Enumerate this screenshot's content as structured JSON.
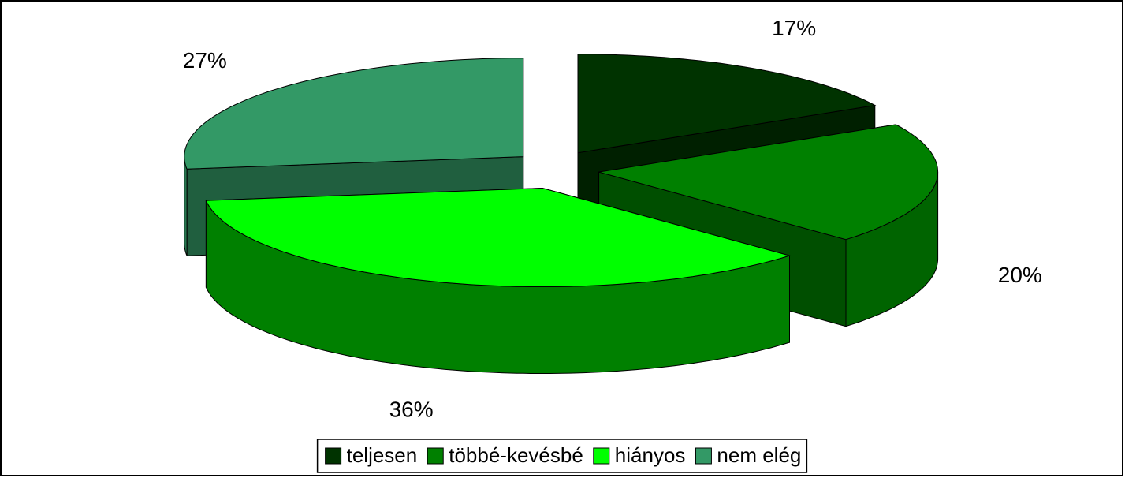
{
  "chart_data": {
    "type": "pie3d",
    "categories": [
      "teljesen",
      "többé-kevésbé",
      "hiányos",
      "nem elég"
    ],
    "values": [
      17,
      20,
      36,
      27
    ],
    "value_labels": [
      "17%",
      "20%",
      "36%",
      "27%"
    ],
    "colors": [
      "#003300",
      "#008000",
      "#00ff00",
      "#339966"
    ],
    "legend": "bottom"
  }
}
